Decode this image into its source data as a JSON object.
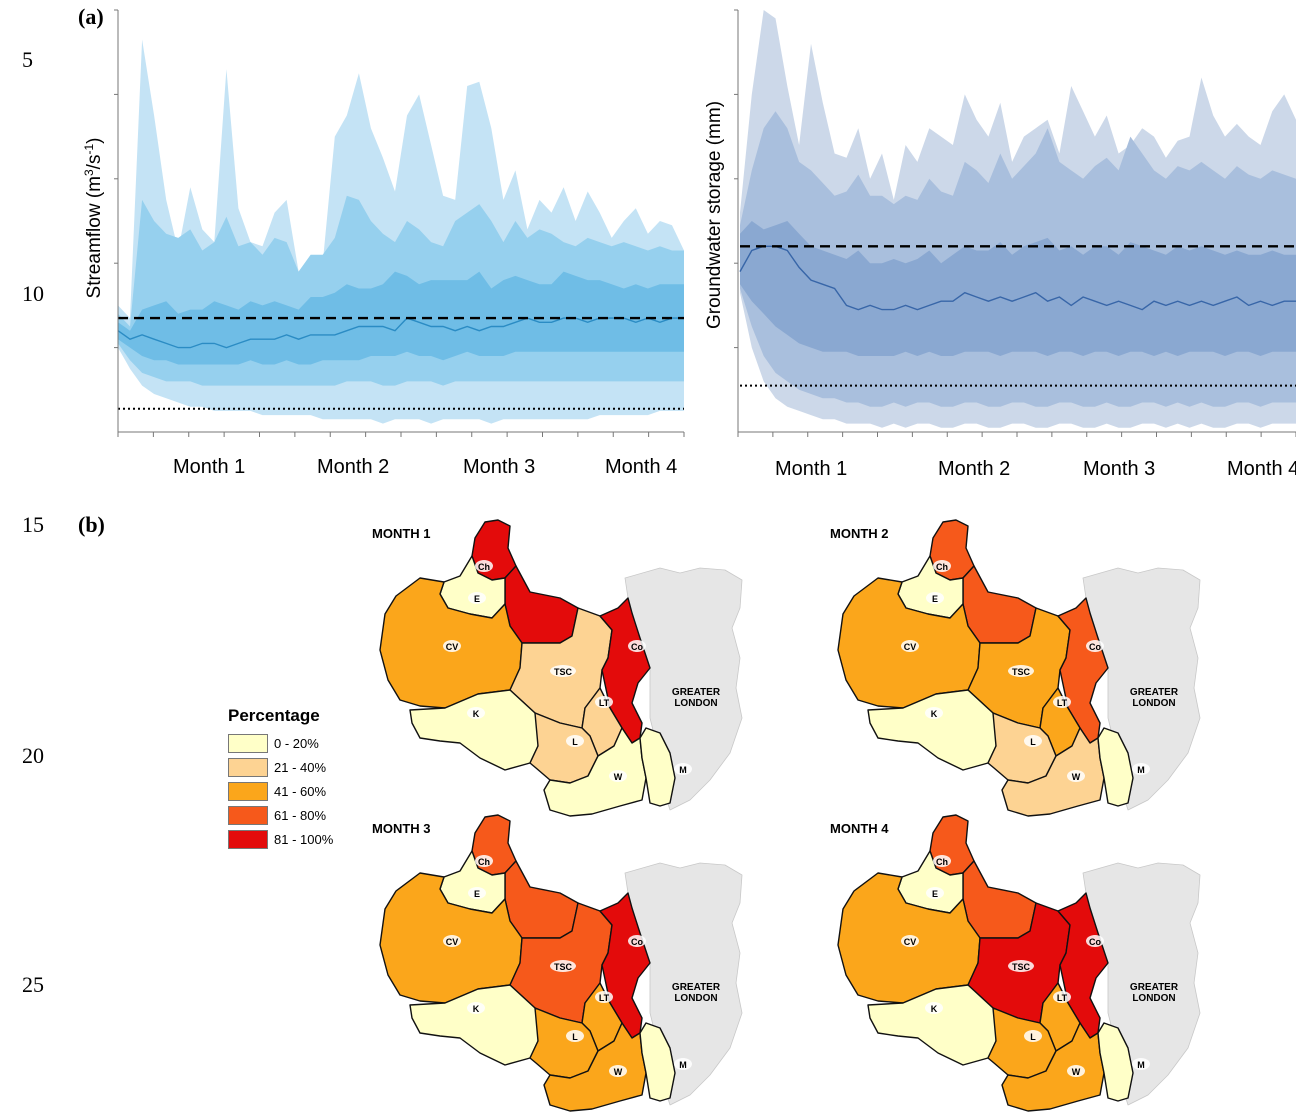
{
  "line_numbers": [
    "5",
    "10",
    "15",
    "20",
    "25"
  ],
  "panel_labels": {
    "a": "(a)",
    "b": "(b)"
  },
  "chart_data": [
    {
      "type": "area",
      "ylabel": "Streamflow (m3/s-1)",
      "ylabel_parts": {
        "prefix": "Streamflow (m",
        "sup1": "3",
        "mid": "/s",
        "sup2": "-1",
        "suffix": ")"
      },
      "x_tick_labels": [
        "Month 1",
        "Month 2",
        "Month 3",
        "Month 4"
      ],
      "y_tick_labels": [],
      "colors": {
        "outer": "#c4e3f5",
        "middle": "#96d0ee",
        "inner": "#6fbde6",
        "median": "#2b8cc4"
      },
      "reference_lines": {
        "dashed": 0.27,
        "dotted": 0.055
      },
      "band_outer_upper": [
        0.3,
        0.27,
        0.93,
        0.75,
        0.55,
        0.43,
        0.58,
        0.48,
        0.45,
        0.86,
        0.53,
        0.45,
        0.44,
        0.52,
        0.55,
        0.38,
        0.42,
        0.4,
        0.7,
        0.75,
        0.85,
        0.72,
        0.65,
        0.57,
        0.75,
        0.8,
        0.68,
        0.56,
        0.55,
        0.82,
        0.83,
        0.72,
        0.55,
        0.62,
        0.48,
        0.55,
        0.52,
        0.58,
        0.5,
        0.57,
        0.52,
        0.46,
        0.5,
        0.53,
        0.47,
        0.5,
        0.49,
        0.43
      ],
      "band_middle_upper": [
        0.28,
        0.25,
        0.55,
        0.5,
        0.47,
        0.46,
        0.48,
        0.43,
        0.45,
        0.51,
        0.44,
        0.45,
        0.42,
        0.46,
        0.45,
        0.38,
        0.42,
        0.42,
        0.46,
        0.56,
        0.55,
        0.5,
        0.47,
        0.45,
        0.5,
        0.48,
        0.45,
        0.44,
        0.5,
        0.52,
        0.54,
        0.5,
        0.45,
        0.5,
        0.46,
        0.48,
        0.47,
        0.45,
        0.44,
        0.46,
        0.45,
        0.44,
        0.45,
        0.44,
        0.43,
        0.44,
        0.43,
        0.43
      ],
      "band_inner_upper": [
        0.26,
        0.24,
        0.29,
        0.3,
        0.31,
        0.28,
        0.29,
        0.29,
        0.31,
        0.3,
        0.29,
        0.31,
        0.3,
        0.31,
        0.3,
        0.29,
        0.32,
        0.32,
        0.33,
        0.35,
        0.34,
        0.34,
        0.35,
        0.38,
        0.37,
        0.35,
        0.36,
        0.36,
        0.36,
        0.36,
        0.38,
        0.34,
        0.36,
        0.37,
        0.36,
        0.35,
        0.35,
        0.38,
        0.37,
        0.36,
        0.36,
        0.35,
        0.34,
        0.35,
        0.34,
        0.35,
        0.35,
        0.35
      ],
      "median": [
        0.24,
        0.22,
        0.23,
        0.22,
        0.21,
        0.2,
        0.2,
        0.21,
        0.21,
        0.2,
        0.21,
        0.22,
        0.22,
        0.22,
        0.23,
        0.22,
        0.23,
        0.23,
        0.23,
        0.24,
        0.25,
        0.25,
        0.25,
        0.24,
        0.27,
        0.26,
        0.25,
        0.25,
        0.24,
        0.25,
        0.24,
        0.25,
        0.25,
        0.26,
        0.27,
        0.26,
        0.26,
        0.27,
        0.27,
        0.26,
        0.27,
        0.27,
        0.27,
        0.26,
        0.27,
        0.26,
        0.27,
        0.27
      ],
      "band_inner_lower": [
        0.22,
        0.2,
        0.18,
        0.17,
        0.17,
        0.16,
        0.16,
        0.16,
        0.16,
        0.16,
        0.16,
        0.17,
        0.16,
        0.16,
        0.17,
        0.16,
        0.16,
        0.17,
        0.17,
        0.17,
        0.17,
        0.18,
        0.18,
        0.18,
        0.19,
        0.18,
        0.18,
        0.17,
        0.18,
        0.19,
        0.18,
        0.18,
        0.18,
        0.19,
        0.19,
        0.19,
        0.19,
        0.19,
        0.19,
        0.19,
        0.19,
        0.19,
        0.19,
        0.19,
        0.19,
        0.19,
        0.19,
        0.19
      ],
      "band_middle_lower": [
        0.21,
        0.17,
        0.14,
        0.13,
        0.12,
        0.12,
        0.12,
        0.11,
        0.11,
        0.11,
        0.11,
        0.11,
        0.11,
        0.11,
        0.11,
        0.11,
        0.11,
        0.11,
        0.11,
        0.12,
        0.12,
        0.12,
        0.11,
        0.11,
        0.12,
        0.12,
        0.12,
        0.11,
        0.12,
        0.12,
        0.12,
        0.12,
        0.12,
        0.12,
        0.12,
        0.12,
        0.12,
        0.12,
        0.12,
        0.12,
        0.12,
        0.12,
        0.12,
        0.12,
        0.12,
        0.12,
        0.12,
        0.12
      ],
      "band_outer_lower": [
        0.2,
        0.15,
        0.11,
        0.09,
        0.08,
        0.07,
        0.06,
        0.06,
        0.05,
        0.05,
        0.05,
        0.05,
        0.04,
        0.04,
        0.04,
        0.04,
        0.04,
        0.03,
        0.03,
        0.03,
        0.03,
        0.03,
        0.02,
        0.03,
        0.03,
        0.03,
        0.02,
        0.03,
        0.03,
        0.03,
        0.03,
        0.02,
        0.03,
        0.03,
        0.03,
        0.03,
        0.03,
        0.03,
        0.03,
        0.03,
        0.04,
        0.04,
        0.04,
        0.04,
        0.04,
        0.05,
        0.05,
        0.05
      ]
    },
    {
      "type": "area",
      "ylabel": "Groundwater storage (mm)",
      "x_tick_labels": [
        "Month 1",
        "Month 2",
        "Month 3",
        "Month 4"
      ],
      "y_tick_labels": [],
      "colors": {
        "outer": "#ccd8e9",
        "middle": "#a9bfdd",
        "inner": "#8aa8d1",
        "median": "#3866a8"
      },
      "reference_lines": {
        "dashed": 0.44,
        "dotted": 0.11
      },
      "band_outer_upper": [
        0.52,
        0.8,
        1.0,
        0.98,
        0.82,
        0.68,
        0.92,
        0.78,
        0.66,
        0.65,
        0.72,
        0.6,
        0.66,
        0.55,
        0.68,
        0.64,
        0.72,
        0.7,
        0.68,
        0.8,
        0.74,
        0.7,
        0.78,
        0.64,
        0.7,
        0.72,
        0.74,
        0.66,
        0.82,
        0.76,
        0.7,
        0.75,
        0.66,
        0.68,
        0.72,
        0.7,
        0.65,
        0.69,
        0.7,
        0.84,
        0.75,
        0.7,
        0.73,
        0.7,
        0.68,
        0.76,
        0.8,
        0.74
      ],
      "band_middle_upper": [
        0.49,
        0.62,
        0.72,
        0.76,
        0.72,
        0.64,
        0.62,
        0.59,
        0.56,
        0.57,
        0.61,
        0.56,
        0.56,
        0.54,
        0.56,
        0.55,
        0.6,
        0.57,
        0.56,
        0.64,
        0.62,
        0.59,
        0.66,
        0.6,
        0.63,
        0.66,
        0.72,
        0.64,
        0.62,
        0.6,
        0.63,
        0.65,
        0.62,
        0.7,
        0.66,
        0.62,
        0.6,
        0.63,
        0.62,
        0.64,
        0.62,
        0.6,
        0.63,
        0.61,
        0.6,
        0.62,
        0.61,
        0.6
      ],
      "band_inner_upper": [
        0.47,
        0.5,
        0.48,
        0.49,
        0.5,
        0.47,
        0.44,
        0.43,
        0.42,
        0.41,
        0.43,
        0.4,
        0.4,
        0.41,
        0.4,
        0.41,
        0.43,
        0.4,
        0.42,
        0.44,
        0.43,
        0.43,
        0.45,
        0.42,
        0.44,
        0.45,
        0.46,
        0.43,
        0.44,
        0.42,
        0.44,
        0.44,
        0.42,
        0.45,
        0.44,
        0.43,
        0.42,
        0.44,
        0.43,
        0.44,
        0.43,
        0.42,
        0.43,
        0.42,
        0.42,
        0.43,
        0.42,
        0.42
      ],
      "median": [
        0.38,
        0.43,
        0.44,
        0.44,
        0.43,
        0.39,
        0.36,
        0.35,
        0.34,
        0.3,
        0.29,
        0.3,
        0.29,
        0.29,
        0.3,
        0.29,
        0.3,
        0.31,
        0.31,
        0.33,
        0.32,
        0.31,
        0.32,
        0.31,
        0.32,
        0.33,
        0.31,
        0.32,
        0.3,
        0.32,
        0.31,
        0.3,
        0.31,
        0.3,
        0.29,
        0.31,
        0.3,
        0.31,
        0.3,
        0.31,
        0.3,
        0.31,
        0.32,
        0.3,
        0.31,
        0.3,
        0.31,
        0.31
      ],
      "band_inner_lower": [
        0.35,
        0.31,
        0.28,
        0.25,
        0.23,
        0.21,
        0.2,
        0.19,
        0.19,
        0.19,
        0.18,
        0.18,
        0.18,
        0.18,
        0.19,
        0.18,
        0.19,
        0.18,
        0.18,
        0.19,
        0.19,
        0.19,
        0.18,
        0.19,
        0.19,
        0.19,
        0.18,
        0.19,
        0.19,
        0.18,
        0.19,
        0.19,
        0.18,
        0.19,
        0.19,
        0.18,
        0.19,
        0.18,
        0.19,
        0.19,
        0.19,
        0.18,
        0.19,
        0.19,
        0.18,
        0.19,
        0.19,
        0.19
      ],
      "band_middle_lower": [
        0.34,
        0.25,
        0.18,
        0.14,
        0.12,
        0.1,
        0.09,
        0.08,
        0.08,
        0.07,
        0.07,
        0.06,
        0.06,
        0.07,
        0.06,
        0.07,
        0.07,
        0.06,
        0.06,
        0.07,
        0.07,
        0.06,
        0.06,
        0.07,
        0.07,
        0.06,
        0.06,
        0.07,
        0.07,
        0.06,
        0.06,
        0.07,
        0.06,
        0.06,
        0.07,
        0.07,
        0.06,
        0.07,
        0.06,
        0.07,
        0.06,
        0.06,
        0.07,
        0.07,
        0.06,
        0.07,
        0.07,
        0.07
      ],
      "band_outer_lower": [
        0.33,
        0.2,
        0.12,
        0.08,
        0.06,
        0.05,
        0.04,
        0.03,
        0.03,
        0.02,
        0.02,
        0.02,
        0.01,
        0.02,
        0.01,
        0.02,
        0.02,
        0.01,
        0.01,
        0.02,
        0.02,
        0.01,
        0.01,
        0.02,
        0.02,
        0.01,
        0.01,
        0.02,
        0.02,
        0.01,
        0.01,
        0.02,
        0.01,
        0.01,
        0.02,
        0.02,
        0.01,
        0.02,
        0.01,
        0.02,
        0.01,
        0.01,
        0.02,
        0.02,
        0.01,
        0.02,
        0.02,
        0.02
      ]
    }
  ],
  "legend": {
    "title": "Percentage",
    "items": [
      {
        "label": "0 - 20%",
        "color": "#ffffc8"
      },
      {
        "label": "21 - 40%",
        "color": "#fdd393"
      },
      {
        "label": "41 - 60%",
        "color": "#fba61b"
      },
      {
        "label": "61 - 80%",
        "color": "#f6591b"
      },
      {
        "label": "81 - 100%",
        "color": "#e30b0b"
      }
    ]
  },
  "region_labels": [
    "Ch",
    "E",
    "CV",
    "TSC",
    "Co",
    "K",
    "LT",
    "L",
    "W",
    "M"
  ],
  "greater_london_label": [
    "GREATER",
    "LONDON"
  ],
  "maps": [
    {
      "title": "MONTH 1",
      "classes": {
        "Ch": 4,
        "Ch2": 4,
        "E": 0,
        "CV": 2,
        "TSC": 1,
        "Co": 4,
        "K": 0,
        "LT": 1,
        "L": 1,
        "W": 0,
        "M": 0
      }
    },
    {
      "title": "MONTH 2",
      "classes": {
        "Ch": 3,
        "Ch2": 3,
        "E": 0,
        "CV": 2,
        "TSC": 2,
        "Co": 3,
        "K": 0,
        "LT": 2,
        "L": 1,
        "W": 1,
        "M": 0
      }
    },
    {
      "title": "MONTH 3",
      "classes": {
        "Ch": 3,
        "Ch2": 3,
        "E": 0,
        "CV": 2,
        "TSC": 3,
        "Co": 4,
        "K": 0,
        "LT": 2,
        "L": 2,
        "W": 2,
        "M": 0
      }
    },
    {
      "title": "MONTH 4",
      "classes": {
        "Ch": 3,
        "Ch2": 3,
        "E": 0,
        "CV": 2,
        "TSC": 4,
        "Co": 4,
        "K": 0,
        "LT": 2,
        "L": 2,
        "W": 2,
        "M": 0
      }
    }
  ]
}
